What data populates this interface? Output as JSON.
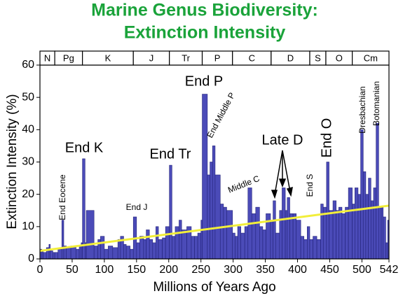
{
  "chart_data": {
    "type": "bar",
    "title": [
      "Marine Genus Biodiversity:",
      "Extinction Intensity"
    ],
    "xlabel": "Millions of Years Ago",
    "ylabel": "Extinction Intensity (%)",
    "color": "#4b4bb8",
    "x": [
      0,
      3,
      5,
      10,
      14,
      16,
      20,
      23,
      28,
      34,
      37,
      41,
      48,
      56,
      61,
      64,
      66,
      70,
      72,
      84,
      90,
      94,
      100,
      106,
      113,
      121,
      125,
      130,
      134,
      140,
      145,
      150,
      155,
      161,
      165,
      170,
      175,
      180,
      184,
      190,
      195,
      201,
      205,
      210,
      216,
      220,
      228,
      235,
      240,
      245,
      250,
      252,
      260,
      264,
      268,
      272,
      280,
      285,
      290,
      299,
      303,
      307,
      312,
      318,
      323,
      329,
      335,
      341,
      346,
      351,
      358,
      362,
      366,
      372,
      376,
      381,
      384,
      388,
      393,
      398,
      405,
      410,
      415,
      419,
      424,
      430,
      436,
      440,
      445,
      449,
      455,
      460,
      464,
      469,
      474,
      479,
      485,
      489,
      494,
      498,
      502,
      506,
      510,
      514,
      518,
      522,
      526,
      530,
      533,
      537,
      540
    ],
    "values": [
      3,
      2.5,
      2,
      3.5,
      4.5,
      2.5,
      2,
      2,
      3,
      12,
      4,
      3.5,
      4,
      3,
      4,
      5,
      31,
      5,
      15,
      4,
      6,
      7,
      3,
      4,
      3.5,
      6,
      7,
      4.5,
      4,
      3,
      13,
      5,
      7,
      6,
      9,
      6,
      5,
      10,
      6,
      6.5,
      10,
      29,
      7,
      10,
      12,
      9,
      10,
      7,
      7,
      8,
      12,
      51,
      26,
      30,
      35,
      26,
      17,
      16,
      15,
      8,
      7,
      10,
      8,
      10,
      22,
      14,
      16,
      10,
      9,
      14,
      12,
      18,
      8,
      15,
      22,
      15,
      19,
      14,
      14,
      12,
      7,
      6,
      10,
      6,
      7,
      6,
      17,
      16,
      30,
      15,
      18,
      15,
      16,
      14,
      16,
      22,
      17,
      22,
      20,
      40,
      27,
      20,
      25,
      18,
      22,
      42,
      16,
      16,
      13,
      5,
      12
    ],
    "trend": {
      "color": "#f2ee3a",
      "x": [
        0,
        542
      ],
      "values": [
        2.5,
        16.5
      ]
    },
    "xlim": [
      0,
      542
    ],
    "ylim": [
      0,
      60
    ],
    "xticks": [
      0,
      50,
      100,
      150,
      200,
      250,
      300,
      350,
      400,
      450,
      500,
      542
    ],
    "yticks": [
      0,
      10,
      20,
      30,
      40,
      50,
      60
    ],
    "periods": [
      {
        "label": "N",
        "start": 0,
        "end": 23
      },
      {
        "label": "Pg",
        "start": 23,
        "end": 66
      },
      {
        "label": "K",
        "start": 66,
        "end": 145
      },
      {
        "label": "J",
        "start": 145,
        "end": 201
      },
      {
        "label": "Tr",
        "start": 201,
        "end": 252
      },
      {
        "label": "P",
        "start": 252,
        "end": 299
      },
      {
        "label": "C",
        "start": 299,
        "end": 359
      },
      {
        "label": "D",
        "start": 359,
        "end": 419
      },
      {
        "label": "S",
        "start": 419,
        "end": 444
      },
      {
        "label": "O",
        "start": 444,
        "end": 485
      },
      {
        "label": "Cm",
        "start": 485,
        "end": 542
      }
    ],
    "annotations": [
      "End Eocene",
      "End K",
      "End J",
      "End Tr",
      "End P",
      "End Middle P",
      "Middle C",
      "Late D",
      "End S",
      "End O",
      "Dresbachian",
      "Botomanian"
    ]
  }
}
